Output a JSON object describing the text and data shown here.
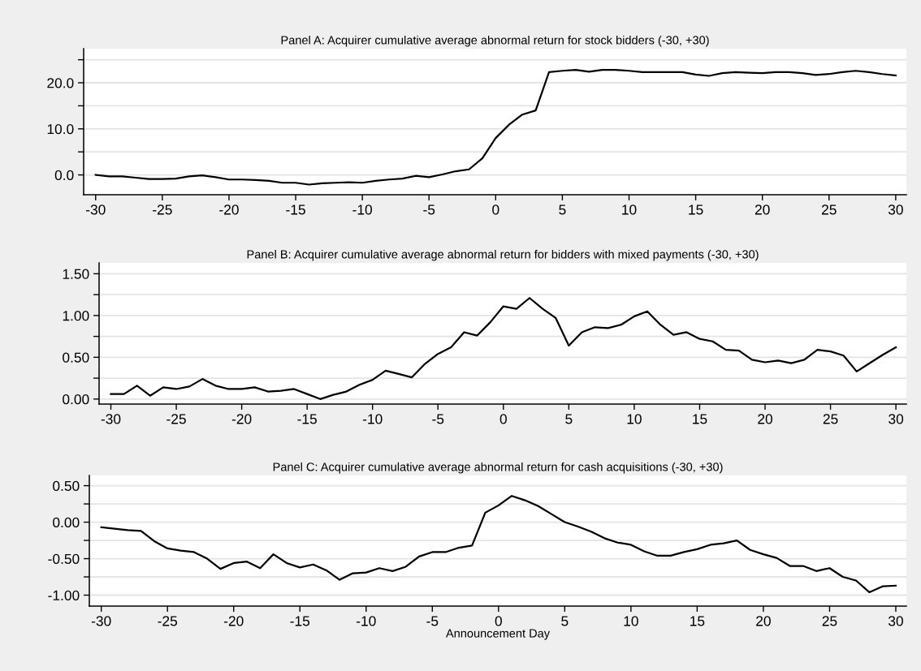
{
  "chart_data": [
    {
      "type": "line",
      "title": "Panel A: Acquirer cumulative average abnormal return for stock bidders (-30, +30)",
      "x": [
        -30,
        -29,
        -28,
        -27,
        -26,
        -25,
        -24,
        -23,
        -22,
        -21,
        -20,
        -19,
        -18,
        -17,
        -16,
        -15,
        -14,
        -13,
        -12,
        -11,
        -10,
        -9,
        -8,
        -7,
        -6,
        -5,
        -4,
        -3,
        -2,
        -1,
        0,
        1,
        2,
        3,
        4,
        5,
        6,
        7,
        8,
        9,
        10,
        11,
        12,
        13,
        14,
        15,
        16,
        17,
        18,
        19,
        20,
        21,
        22,
        23,
        24,
        25,
        26,
        27,
        28,
        29,
        30
      ],
      "series": [
        {
          "color": "#000000",
          "values": [
            0,
            -0.3,
            -0.3,
            -0.6,
            -0.9,
            -0.9,
            -0.8,
            -0.3,
            -0.1,
            -0.5,
            -1.0,
            -1.0,
            -1.1,
            -1.3,
            -1.7,
            -1.7,
            -2.1,
            -1.8,
            -1.7,
            -1.6,
            -1.7,
            -1.3,
            -1.0,
            -0.8,
            -0.2,
            -0.5,
            0.1,
            0.8,
            1.2,
            3.6,
            8.0,
            10.9,
            13.1,
            14.0,
            22.3,
            22.6,
            22.8,
            22.4,
            22.8,
            22.8,
            22.6,
            22.3,
            22.3,
            22.3,
            22.3,
            21.8,
            21.5,
            22.1,
            22.3,
            22.2,
            22.1,
            22.3,
            22.3,
            22.1,
            21.7,
            21.9,
            22.3,
            22.6,
            22.3,
            21.9,
            21.6
          ]
        }
      ],
      "xlim": [
        -30.9,
        30.8
      ],
      "xticks": [
        -30,
        -25,
        -20,
        -15,
        -10,
        -5,
        0,
        5,
        10,
        15,
        20,
        25,
        30
      ],
      "ylim": [
        -4.3,
        27.4
      ],
      "yticks": [
        {
          "value": 0,
          "label": "0.0"
        },
        {
          "value": 5,
          "label": null
        },
        {
          "value": 10,
          "label": "10.0"
        },
        {
          "value": 15,
          "label": null
        },
        {
          "value": 20,
          "label": "20.0"
        },
        {
          "value": 25,
          "label": null
        }
      ],
      "grid": "y",
      "marker": "none",
      "line_style": "solid"
    },
    {
      "type": "line",
      "title": "Panel B: Acquirer cumulative average abnormal return for bidders with mixed payments (-30, +30)",
      "x": [
        -30,
        -29,
        -28,
        -27,
        -26,
        -25,
        -24,
        -23,
        -22,
        -21,
        -20,
        -19,
        -18,
        -17,
        -16,
        -15,
        -14,
        -13,
        -12,
        -11,
        -10,
        -9,
        -8,
        -7,
        -6,
        -5,
        -4,
        -3,
        -2,
        -1,
        0,
        1,
        2,
        3,
        4,
        5,
        6,
        7,
        8,
        9,
        10,
        11,
        12,
        13,
        14,
        15,
        16,
        17,
        18,
        19,
        20,
        21,
        22,
        23,
        24,
        25,
        26,
        27,
        28,
        29,
        30
      ],
      "series": [
        {
          "color": "#000000",
          "values": [
            0.06,
            0.06,
            0.16,
            0.04,
            0.14,
            0.12,
            0.15,
            0.24,
            0.16,
            0.12,
            0.12,
            0.14,
            0.09,
            0.1,
            0.12,
            0.06,
            0.0,
            0.05,
            0.09,
            0.17,
            0.23,
            0.34,
            0.3,
            0.26,
            0.42,
            0.54,
            0.62,
            0.8,
            0.76,
            0.92,
            1.11,
            1.08,
            1.21,
            1.08,
            0.97,
            0.64,
            0.8,
            0.86,
            0.85,
            0.89,
            0.99,
            1.05,
            0.89,
            0.77,
            0.8,
            0.72,
            0.69,
            0.59,
            0.58,
            0.47,
            0.44,
            0.46,
            0.43,
            0.47,
            0.59,
            0.57,
            0.52,
            0.33,
            0.43,
            0.53,
            0.62
          ]
        }
      ],
      "xlim": [
        -30.9,
        30.8
      ],
      "xticks": [
        -30,
        -25,
        -20,
        -15,
        -10,
        -5,
        0,
        5,
        10,
        15,
        20,
        25,
        30
      ],
      "ylim": [
        -0.06,
        1.63
      ],
      "yticks": [
        {
          "value": 0,
          "label": "0.00"
        },
        {
          "value": 0.25,
          "label": null
        },
        {
          "value": 0.5,
          "label": "0.50"
        },
        {
          "value": 0.75,
          "label": null
        },
        {
          "value": 1.0,
          "label": "1.00"
        },
        {
          "value": 1.25,
          "label": null
        },
        {
          "value": 1.5,
          "label": "1.50"
        }
      ],
      "grid": "y",
      "marker": "none",
      "line_style": "solid"
    },
    {
      "type": "line",
      "title": "Panel C: Acquirer cumulative average abnormal return for cash acquisitions (-30, +30)",
      "xlabel": "Announcement Day",
      "x": [
        -30,
        -29,
        -28,
        -27,
        -26,
        -25,
        -24,
        -23,
        -22,
        -21,
        -20,
        -19,
        -18,
        -17,
        -16,
        -15,
        -14,
        -13,
        -12,
        -11,
        -10,
        -9,
        -8,
        -7,
        -6,
        -5,
        -4,
        -3,
        -2,
        -1,
        0,
        1,
        2,
        3,
        4,
        5,
        6,
        7,
        8,
        9,
        10,
        11,
        12,
        13,
        14,
        15,
        16,
        17,
        18,
        19,
        20,
        21,
        22,
        23,
        24,
        25,
        26,
        27,
        28,
        29,
        30
      ],
      "series": [
        {
          "color": "#000000",
          "values": [
            -0.07,
            -0.09,
            -0.11,
            -0.12,
            -0.26,
            -0.36,
            -0.39,
            -0.41,
            -0.5,
            -0.64,
            -0.56,
            -0.54,
            -0.63,
            -0.44,
            -0.56,
            -0.62,
            -0.58,
            -0.66,
            -0.79,
            -0.7,
            -0.69,
            -0.63,
            -0.67,
            -0.61,
            -0.47,
            -0.41,
            -0.41,
            -0.35,
            -0.32,
            0.13,
            0.23,
            0.36,
            0.3,
            0.22,
            0.11,
            0.0,
            -0.06,
            -0.13,
            -0.22,
            -0.28,
            -0.31,
            -0.4,
            -0.46,
            -0.46,
            -0.41,
            -0.37,
            -0.31,
            -0.29,
            -0.25,
            -0.38,
            -0.44,
            -0.49,
            -0.6,
            -0.6,
            -0.67,
            -0.63,
            -0.75,
            -0.8,
            -0.96,
            -0.88,
            -0.87
          ]
        }
      ],
      "xlim": [
        -30.9,
        30.8
      ],
      "xticks": [
        -30,
        -25,
        -20,
        -15,
        -10,
        -5,
        0,
        5,
        10,
        15,
        20,
        25,
        30
      ],
      "ylim": [
        -1.15,
        0.64
      ],
      "yticks": [
        {
          "value": -1.0,
          "label": "-1.00"
        },
        {
          "value": -0.75,
          "label": null
        },
        {
          "value": -0.5,
          "label": "-0.50"
        },
        {
          "value": -0.25,
          "label": null
        },
        {
          "value": 0,
          "label": "0.00"
        },
        {
          "value": 0.25,
          "label": null
        },
        {
          "value": 0.5,
          "label": "0.50"
        }
      ],
      "grid": "y",
      "marker": "none",
      "line_style": "solid"
    }
  ]
}
